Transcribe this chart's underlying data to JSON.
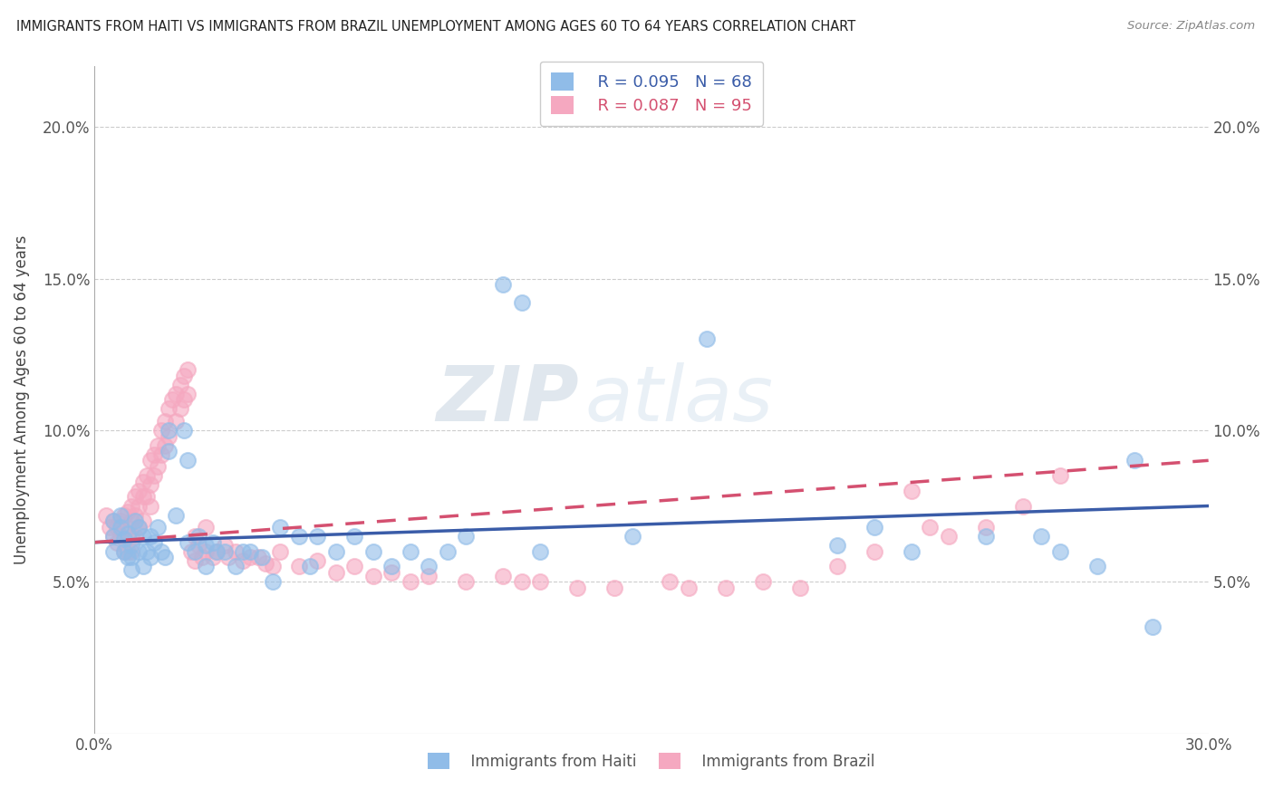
{
  "title": "IMMIGRANTS FROM HAITI VS IMMIGRANTS FROM BRAZIL UNEMPLOYMENT AMONG AGES 60 TO 64 YEARS CORRELATION CHART",
  "source": "Source: ZipAtlas.com",
  "ylabel": "Unemployment Among Ages 60 to 64 years",
  "xlim": [
    0.0,
    0.3
  ],
  "ylim": [
    0.0,
    0.22
  ],
  "haiti_color": "#90bce8",
  "brazil_color": "#f5a8c0",
  "haiti_R": 0.095,
  "haiti_N": 68,
  "brazil_R": 0.087,
  "brazil_N": 95,
  "haiti_line_color": "#3a5ca8",
  "brazil_line_color": "#d45070",
  "watermark_color": "#d8e4f0",
  "haiti_scatter_x": [
    0.005,
    0.005,
    0.005,
    0.007,
    0.007,
    0.008,
    0.008,
    0.009,
    0.009,
    0.01,
    0.01,
    0.01,
    0.011,
    0.012,
    0.012,
    0.013,
    0.013,
    0.014,
    0.015,
    0.015,
    0.016,
    0.017,
    0.018,
    0.019,
    0.02,
    0.02,
    0.022,
    0.024,
    0.025,
    0.025,
    0.027,
    0.028,
    0.03,
    0.03,
    0.032,
    0.033,
    0.035,
    0.038,
    0.04,
    0.042,
    0.045,
    0.048,
    0.05,
    0.055,
    0.058,
    0.06,
    0.065,
    0.07,
    0.075,
    0.08,
    0.085,
    0.09,
    0.095,
    0.1,
    0.11,
    0.115,
    0.12,
    0.145,
    0.165,
    0.2,
    0.21,
    0.22,
    0.24,
    0.255,
    0.26,
    0.27,
    0.28,
    0.285
  ],
  "haiti_scatter_y": [
    0.07,
    0.065,
    0.06,
    0.072,
    0.068,
    0.064,
    0.06,
    0.058,
    0.066,
    0.062,
    0.058,
    0.054,
    0.07,
    0.068,
    0.06,
    0.055,
    0.065,
    0.06,
    0.065,
    0.058,
    0.063,
    0.068,
    0.06,
    0.058,
    0.1,
    0.093,
    0.072,
    0.1,
    0.09,
    0.063,
    0.06,
    0.065,
    0.062,
    0.055,
    0.063,
    0.06,
    0.06,
    0.055,
    0.06,
    0.06,
    0.058,
    0.05,
    0.068,
    0.065,
    0.055,
    0.065,
    0.06,
    0.065,
    0.06,
    0.055,
    0.06,
    0.055,
    0.06,
    0.065,
    0.148,
    0.142,
    0.06,
    0.065,
    0.13,
    0.062,
    0.068,
    0.06,
    0.065,
    0.065,
    0.06,
    0.055,
    0.09,
    0.035
  ],
  "brazil_scatter_x": [
    0.003,
    0.004,
    0.005,
    0.005,
    0.006,
    0.006,
    0.007,
    0.007,
    0.008,
    0.008,
    0.009,
    0.009,
    0.009,
    0.01,
    0.01,
    0.01,
    0.01,
    0.011,
    0.011,
    0.011,
    0.012,
    0.012,
    0.012,
    0.013,
    0.013,
    0.013,
    0.014,
    0.014,
    0.015,
    0.015,
    0.015,
    0.016,
    0.016,
    0.017,
    0.017,
    0.018,
    0.018,
    0.019,
    0.019,
    0.02,
    0.02,
    0.021,
    0.022,
    0.022,
    0.023,
    0.023,
    0.024,
    0.024,
    0.025,
    0.025,
    0.026,
    0.027,
    0.027,
    0.028,
    0.029,
    0.03,
    0.03,
    0.032,
    0.033,
    0.035,
    0.036,
    0.038,
    0.04,
    0.042,
    0.044,
    0.046,
    0.048,
    0.05,
    0.055,
    0.06,
    0.065,
    0.07,
    0.075,
    0.08,
    0.085,
    0.09,
    0.1,
    0.11,
    0.115,
    0.12,
    0.13,
    0.14,
    0.155,
    0.16,
    0.17,
    0.18,
    0.19,
    0.2,
    0.21,
    0.22,
    0.225,
    0.23,
    0.24,
    0.25,
    0.26
  ],
  "brazil_scatter_y": [
    0.072,
    0.068,
    0.07,
    0.065,
    0.068,
    0.063,
    0.07,
    0.065,
    0.072,
    0.06,
    0.073,
    0.068,
    0.06,
    0.075,
    0.07,
    0.065,
    0.06,
    0.078,
    0.072,
    0.065,
    0.08,
    0.075,
    0.068,
    0.083,
    0.078,
    0.07,
    0.085,
    0.078,
    0.09,
    0.082,
    0.075,
    0.092,
    0.085,
    0.095,
    0.088,
    0.1,
    0.092,
    0.103,
    0.095,
    0.107,
    0.098,
    0.11,
    0.112,
    0.103,
    0.115,
    0.107,
    0.118,
    0.11,
    0.12,
    0.112,
    0.06,
    0.065,
    0.057,
    0.062,
    0.058,
    0.068,
    0.06,
    0.058,
    0.06,
    0.062,
    0.058,
    0.06,
    0.057,
    0.058,
    0.058,
    0.056,
    0.055,
    0.06,
    0.055,
    0.057,
    0.053,
    0.055,
    0.052,
    0.053,
    0.05,
    0.052,
    0.05,
    0.052,
    0.05,
    0.05,
    0.048,
    0.048,
    0.05,
    0.048,
    0.048,
    0.05,
    0.048,
    0.055,
    0.06,
    0.08,
    0.068,
    0.065,
    0.068,
    0.075,
    0.085
  ],
  "haiti_line_x0": 0.0,
  "haiti_line_y0": 0.063,
  "haiti_line_x1": 0.3,
  "haiti_line_y1": 0.075,
  "brazil_line_x0": 0.0,
  "brazil_line_y0": 0.063,
  "brazil_line_x1": 0.3,
  "brazil_line_y1": 0.09
}
